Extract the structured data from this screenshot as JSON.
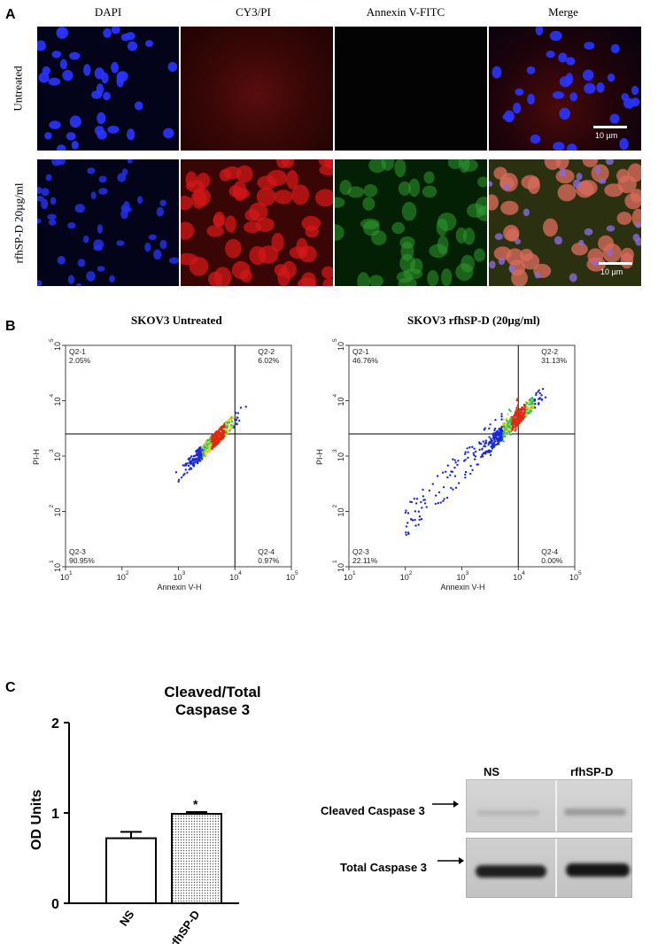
{
  "panel_a": {
    "letter": "A",
    "columns": [
      "DAPI",
      "CY3/PI",
      "Annexin V-FITC",
      "Merge"
    ],
    "rows": [
      "Untreated",
      "rfhSP-D 20µg/ml"
    ],
    "scalebar_label": "10 µm"
  },
  "panel_b": {
    "letter": "B",
    "plots": [
      {
        "title": "SKOV3 Untreated",
        "quadrants": {
          "q1_name": "Q2-1",
          "q1_value": "2.05%",
          "q2_name": "Q2-2",
          "q2_value": "6.02%",
          "q3_name": "Q2-3",
          "q3_value": "90.95%",
          "q4_name": "Q2-4",
          "q4_value": "0.97%"
        },
        "xlabel": "Annexin V-H",
        "ylabel": "PI-H"
      },
      {
        "title": "SKOV3 rfhSP-D (20µg/ml)",
        "quadrants": {
          "q1_name": "Q2-1",
          "q1_value": "46.76%",
          "q2_name": "Q2-2",
          "q2_value": "31.13%",
          "q3_name": "Q2-3",
          "q3_value": "22.11%",
          "q4_name": "Q2-4",
          "q4_value": "0.00%"
        },
        "xlabel": "Annexin V-H",
        "ylabel": "PI-H"
      }
    ],
    "ticks": [
      "10",
      "10",
      "10",
      "10",
      "10"
    ],
    "exponents": [
      "1",
      "2",
      "3",
      "4",
      "5"
    ]
  },
  "panel_c": {
    "letter": "C",
    "chart_title_line1": "Cleaved/Total",
    "chart_title_line2": "Caspase 3",
    "significance": "*",
    "wb": {
      "lane1": "NS",
      "lane2": "rfhSP-D",
      "cleaved_label": "Cleaved Caspase 3",
      "total_label": "Total Caspase 3"
    }
  },
  "chart_data": {
    "type": "bar",
    "categories": [
      "NS",
      "rfhSP-D"
    ],
    "values": [
      0.72,
      0.99
    ],
    "errors": [
      0.07,
      0.02
    ],
    "title": "Cleaved/Total Caspase 3",
    "xlabel": "",
    "ylabel": "OD Units",
    "ylim": [
      0,
      2
    ],
    "yticks": [
      "0",
      "1",
      "2"
    ],
    "colors": {
      "NS": "#ffffff",
      "rfhSP-D": "#e8e8e8"
    }
  }
}
